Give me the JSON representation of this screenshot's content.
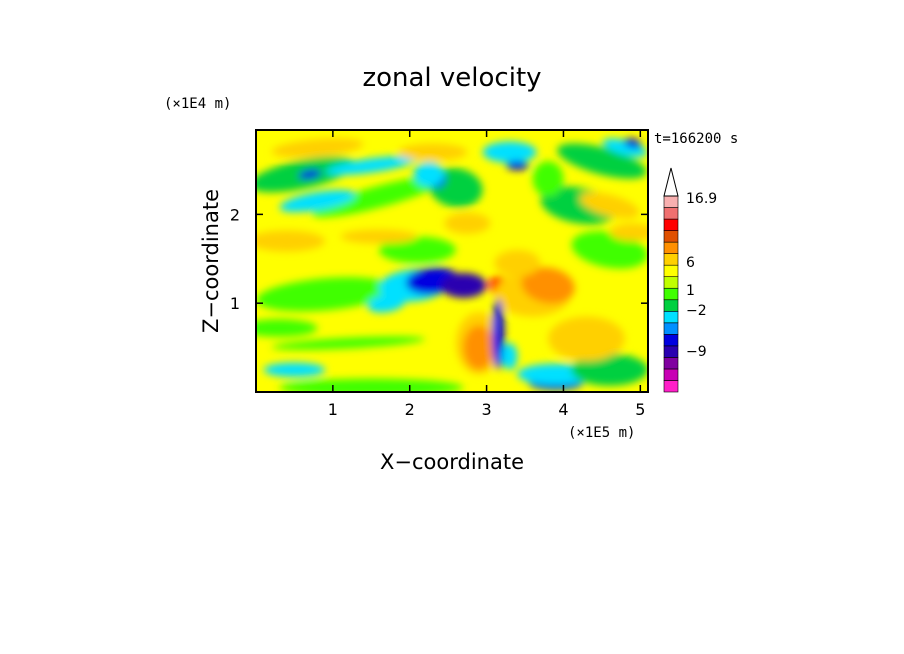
{
  "chart_data": {
    "type": "heatmap",
    "title": "zonal velocity",
    "xlabel": "X−coordinate",
    "ylabel": "Z−coordinate",
    "x_unit": "(×1E5 m)",
    "y_unit": "(×1E4 m)",
    "time_label": "t=166200 s",
    "xlim": [
      0,
      5.1
    ],
    "ylim": [
      0,
      2.95
    ],
    "x_ticks": [
      {
        "value": 1,
        "label": "1"
      },
      {
        "value": 2,
        "label": "2"
      },
      {
        "value": 3,
        "label": "3"
      },
      {
        "value": 4,
        "label": "4"
      },
      {
        "value": 5,
        "label": "5"
      }
    ],
    "y_ticks": [
      {
        "value": 1,
        "label": "1"
      },
      {
        "value": 2,
        "label": "2"
      }
    ],
    "colorbar": {
      "labels": [
        {
          "value": 16.9,
          "label": "16.9"
        },
        {
          "value": 6,
          "label": "6"
        },
        {
          "value": 1,
          "label": "1"
        },
        {
          "value": -2,
          "label": "−2"
        },
        {
          "value": -9,
          "label": "−9"
        }
      ],
      "colors": [
        "#ff1fc8",
        "#c800b4",
        "#8000a0",
        "#2a00b0",
        "#0000e0",
        "#0090ff",
        "#00e0ff",
        "#00d040",
        "#40ff00",
        "#c0ff00",
        "#ffff00",
        "#ffd000",
        "#ff9000",
        "#e05000",
        "#ff0000",
        "#f07070",
        "#f8b0b0"
      ]
    },
    "field_description_levels": "values range approx -12 to 16.9"
  }
}
